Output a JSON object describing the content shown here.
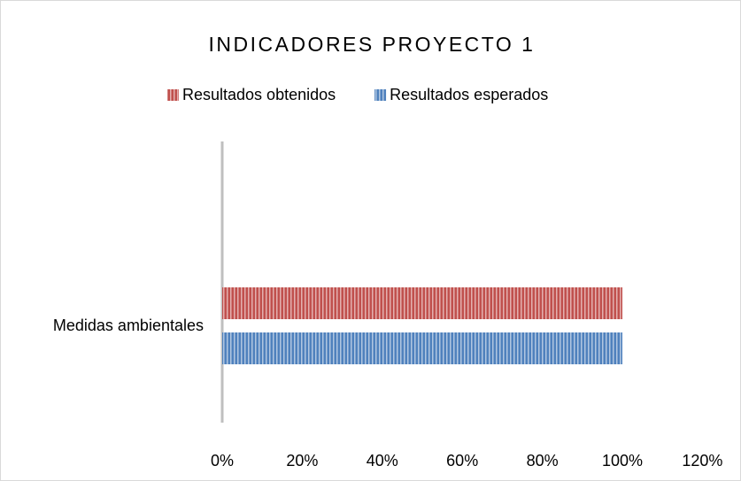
{
  "chart_data": {
    "type": "barh",
    "title": "INDICADORES PROYECTO 1",
    "categories": [
      "Medidas ambientales"
    ],
    "series": [
      {
        "name": "Resultados obtenidos",
        "color": "#c0504d",
        "values": [
          100
        ]
      },
      {
        "name": "Resultados esperados",
        "color": "#4f81bd",
        "values": [
          100
        ]
      }
    ],
    "xlim": [
      0,
      120
    ],
    "xticks": [
      {
        "value": 0,
        "label": "0%"
      },
      {
        "value": 20,
        "label": "20%"
      },
      {
        "value": 40,
        "label": "40%"
      },
      {
        "value": 60,
        "label": "60%"
      },
      {
        "value": 80,
        "label": "80%"
      },
      {
        "value": 100,
        "label": "100%"
      },
      {
        "value": 120,
        "label": "120%"
      }
    ],
    "legend": "top",
    "grid": false
  }
}
